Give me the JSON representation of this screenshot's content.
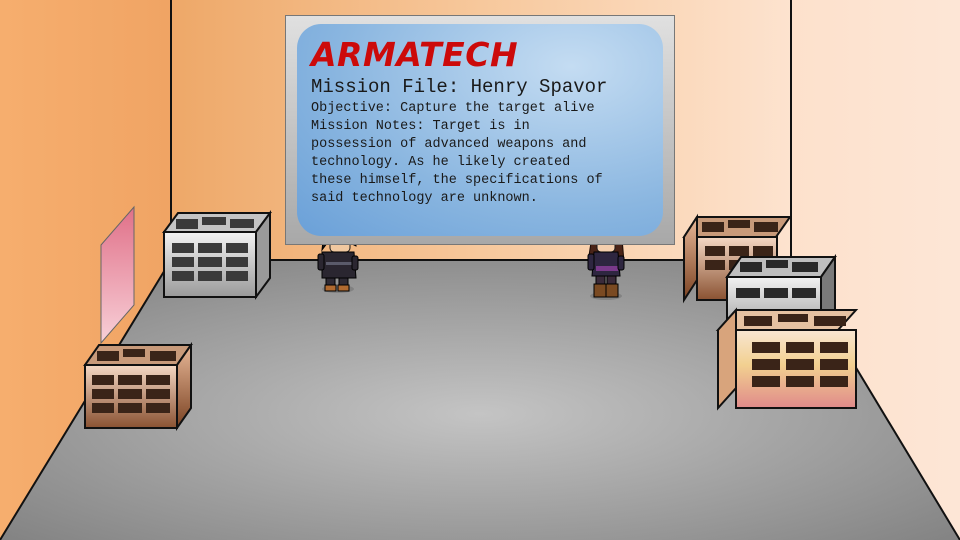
{
  "briefing_screen": {
    "brand": "ARMATECH",
    "mission_title": "Mission File: Henry Spavor",
    "lines": [
      "Objective: Capture the target alive",
      "Mission Notes: Target is in",
      "possession of advanced weapons and",
      "technology. As he likely created",
      "these himself, the specifications of",
      "said technology are unknown."
    ]
  },
  "characters": [
    "agent-male-dark-hair",
    "agent-female-brown-hair"
  ],
  "colors": {
    "brand_red": "#cc0a0a",
    "wall_orange": "#f4a866",
    "wall_peach": "#fde2cc",
    "floor_gray": "#9a9a9a",
    "screen_blue": "#8ab6e0"
  }
}
